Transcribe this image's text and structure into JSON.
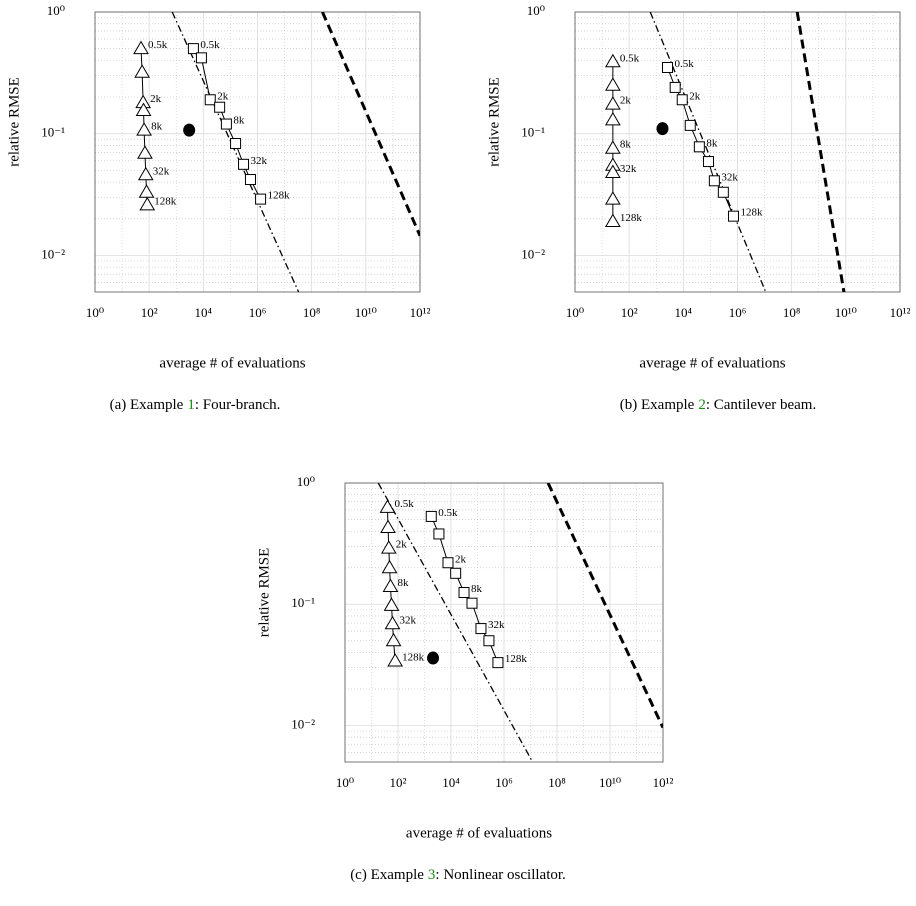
{
  "charts": [
    {
      "chart_data": {
        "type": "scatter",
        "xscale": "log",
        "yscale": "log",
        "grid": true,
        "xlabel": "average # of evaluations",
        "ylabel": "relative RMSE",
        "caption": {
          "prefix": "(a) Example",
          "ref": "1",
          "text": ": Four-branch.",
          "ref_color": "#1a8a1a"
        },
        "xlim": [
          1,
          1000000000000
        ],
        "ylim": [
          0.005,
          1
        ],
        "xticks": [
          {
            "value": 1,
            "label": "10⁰"
          },
          {
            "value": 100,
            "label": "10²"
          },
          {
            "value": 10000,
            "label": "10⁴"
          },
          {
            "value": 1000000,
            "label": "10⁶"
          },
          {
            "value": 100000000,
            "label": "10⁸"
          },
          {
            "value": 10000000000,
            "label": "10¹⁰"
          },
          {
            "value": 1000000000000,
            "label": "10¹²"
          }
        ],
        "yticks": [
          {
            "value": 0.01,
            "label": "10⁻²"
          },
          {
            "value": 0.1,
            "label": "10⁻¹"
          },
          {
            "value": 1,
            "label": "10⁰"
          }
        ],
        "series": [
          {
            "marker": "triangle",
            "line": "solid",
            "color": "#000000",
            "x": [
              50,
              55,
              60,
              62,
              65,
              70,
              75,
              80,
              85
            ],
            "values": [
              0.5,
              0.32,
              0.18,
              0.155,
              0.107,
              0.069,
              0.046,
              0.033,
              0.026
            ],
            "point_labels": [
              "0.5k",
              null,
              "2k",
              null,
              "8k",
              null,
              "32k",
              null,
              "128k"
            ]
          },
          {
            "marker": "square",
            "line": "solid",
            "color": "#000000",
            "x": [
              4300,
              8500,
              18000,
              40000,
              71000,
              155000,
              305000,
              550000,
              1300000
            ],
            "values": [
              0.5,
              0.42,
              0.19,
              0.165,
              0.12,
              0.083,
              0.056,
              0.042,
              0.029
            ],
            "point_labels": [
              "0.5k",
              null,
              "2k",
              null,
              "8k",
              null,
              "32k",
              null,
              "128k"
            ]
          },
          {
            "marker": "circle",
            "color": "#000000",
            "x": [
              3000
            ],
            "values": [
              0.107
            ]
          },
          {
            "line": "dashdot",
            "color": "#000000",
            "x": [
              710,
              33000000
            ],
            "values": [
              1,
              0.005
            ]
          },
          {
            "line": "dashed",
            "color": "#000000",
            "x": [
              250000000,
              1000000000000
            ],
            "values": [
              1,
              0.0145
            ]
          }
        ]
      }
    },
    {
      "chart_data": {
        "type": "scatter",
        "xscale": "log",
        "yscale": "log",
        "grid": true,
        "xlabel": "average # of evaluations",
        "ylabel": "relative RMSE",
        "caption": {
          "prefix": "(b) Example",
          "ref": "2",
          "text": ": Cantilever beam.",
          "ref_color": "#1a8a1a"
        },
        "xlim": [
          1,
          1000000000000
        ],
        "ylim": [
          0.005,
          1
        ],
        "xticks": [
          {
            "value": 1,
            "label": "10⁰"
          },
          {
            "value": 100,
            "label": "10²"
          },
          {
            "value": 10000,
            "label": "10⁴"
          },
          {
            "value": 1000000,
            "label": "10⁶"
          },
          {
            "value": 100000000,
            "label": "10⁸"
          },
          {
            "value": 10000000000,
            "label": "10¹⁰"
          },
          {
            "value": 1000000000000,
            "label": "10¹²"
          }
        ],
        "yticks": [
          {
            "value": 0.01,
            "label": "10⁻²"
          },
          {
            "value": 0.1,
            "label": "10⁻¹"
          },
          {
            "value": 1,
            "label": "10⁰"
          }
        ],
        "series": [
          {
            "marker": "triangle",
            "line": "solid",
            "color": "#000000",
            "x": [
              25,
              25,
              25,
              25,
              25,
              25,
              25,
              25,
              25
            ],
            "values": [
              0.39,
              0.25,
              0.175,
              0.13,
              0.076,
              0.055,
              0.048,
              0.029,
              0.019
            ],
            "point_labels": [
              "0.5k",
              null,
              "2k",
              null,
              "8k",
              null,
              "32k",
              null,
              "128k"
            ]
          },
          {
            "marker": "square",
            "line": "solid",
            "color": "#000000",
            "x": [
              2600,
              5000,
              9100,
              18000,
              39000,
              85000,
              140000,
              300000,
              710000
            ],
            "values": [
              0.35,
              0.24,
              0.19,
              0.117,
              0.078,
              0.059,
              0.041,
              0.033,
              0.021
            ],
            "point_labels": [
              "0.5k",
              null,
              "2k",
              null,
              "8k",
              null,
              "32k",
              null,
              "128k"
            ]
          },
          {
            "marker": "circle",
            "color": "#000000",
            "x": [
              1700
            ],
            "values": [
              0.11
            ]
          },
          {
            "line": "dashdot",
            "color": "#000000",
            "x": [
              600,
              11000000
            ],
            "values": [
              1,
              0.005
            ]
          },
          {
            "line": "dashed",
            "color": "#000000",
            "x": [
              160000000,
              8500000000
            ],
            "values": [
              1,
              0.005
            ]
          }
        ]
      }
    },
    {
      "chart_data": {
        "type": "scatter",
        "xscale": "log",
        "yscale": "log",
        "grid": true,
        "xlabel": "average # of evaluations",
        "ylabel": "relative RMSE",
        "caption": {
          "prefix": "(c) Example",
          "ref": "3",
          "text": ": Nonlinear oscillator.",
          "ref_color": "#1a8a1a"
        },
        "xlim": [
          1,
          1000000000000
        ],
        "ylim": [
          0.005,
          1
        ],
        "xticks": [
          {
            "value": 1,
            "label": "10⁰"
          },
          {
            "value": 100,
            "label": "10²"
          },
          {
            "value": 10000,
            "label": "10⁴"
          },
          {
            "value": 1000000,
            "label": "10⁶"
          },
          {
            "value": 100000000,
            "label": "10⁸"
          },
          {
            "value": 10000000000,
            "label": "10¹⁰"
          },
          {
            "value": 1000000000000,
            "label": "10¹²"
          }
        ],
        "yticks": [
          {
            "value": 0.01,
            "label": "10⁻²"
          },
          {
            "value": 0.1,
            "label": "10⁻¹"
          },
          {
            "value": 1,
            "label": "10⁰"
          }
        ],
        "series": [
          {
            "marker": "triangle",
            "line": "solid",
            "color": "#000000",
            "x": [
              40,
              42,
              45,
              48,
              52,
              57,
              62,
              68,
              78
            ],
            "values": [
              0.63,
              0.43,
              0.29,
              0.2,
              0.14,
              0.098,
              0.069,
              0.05,
              0.034
            ],
            "point_labels": [
              "0.5k",
              null,
              "2k",
              null,
              "8k",
              null,
              "32k",
              null,
              "128k"
            ]
          },
          {
            "marker": "square",
            "line": "solid",
            "color": "#000000",
            "x": [
              1800,
              3500,
              7700,
              15000,
              31000,
              62000,
              135000,
              270000,
              590000
            ],
            "values": [
              0.53,
              0.38,
              0.22,
              0.18,
              0.125,
              0.102,
              0.063,
              0.05,
              0.033
            ],
            "point_labels": [
              "0.5k",
              null,
              "2k",
              null,
              "8k",
              null,
              "32k",
              null,
              "128k"
            ]
          },
          {
            "marker": "circle",
            "color": "#000000",
            "x": [
              2100
            ],
            "values": [
              0.036
            ]
          },
          {
            "line": "dashdot",
            "color": "#000000",
            "x": [
              18,
              12000000
            ],
            "values": [
              1,
              0.005
            ]
          },
          {
            "line": "dashed",
            "color": "#000000",
            "x": [
              46000000,
              1000000000000
            ],
            "values": [
              1,
              0.0096
            ]
          }
        ]
      }
    }
  ]
}
